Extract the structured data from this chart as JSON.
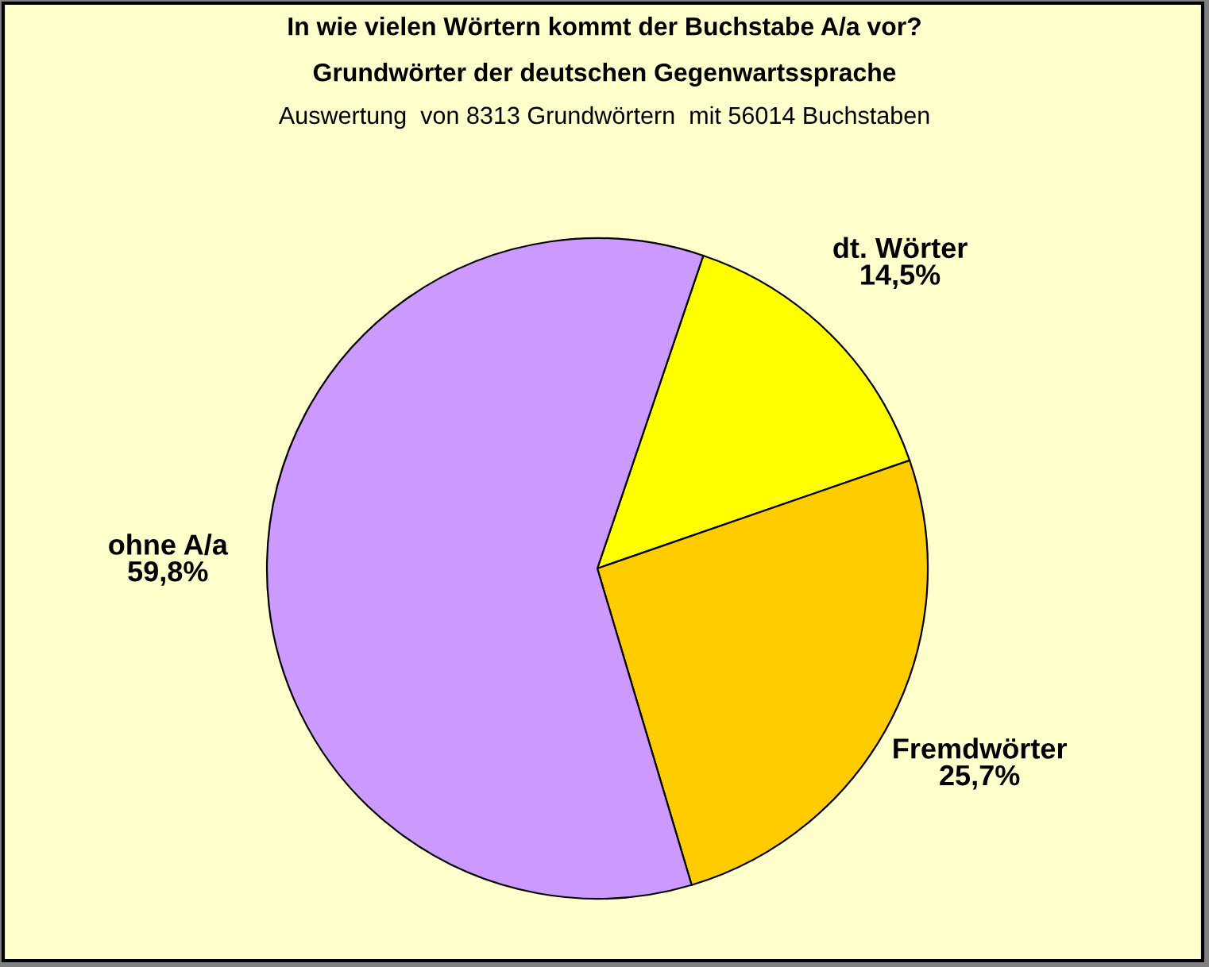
{
  "chart_data": {
    "type": "pie",
    "title": "In wie vielen Wörtern kommt der Buchstabe A/a vor?",
    "subtitle": "Grundwörter der deutschen Gegenwartssprache",
    "annotations": [
      "Auswertung  von 8313 Grundwörtern  mit 56014 Buchstaben"
    ],
    "categories": [
      "dt. Wörter",
      "Fremdwörter",
      "ohne A/a"
    ],
    "values": [
      14.5,
      25.7,
      59.8
    ],
    "colors": [
      "#ffff00",
      "#ffcc00",
      "#cc99ff"
    ],
    "value_labels": [
      "14,5%",
      "25,7%",
      "59,8%"
    ]
  }
}
